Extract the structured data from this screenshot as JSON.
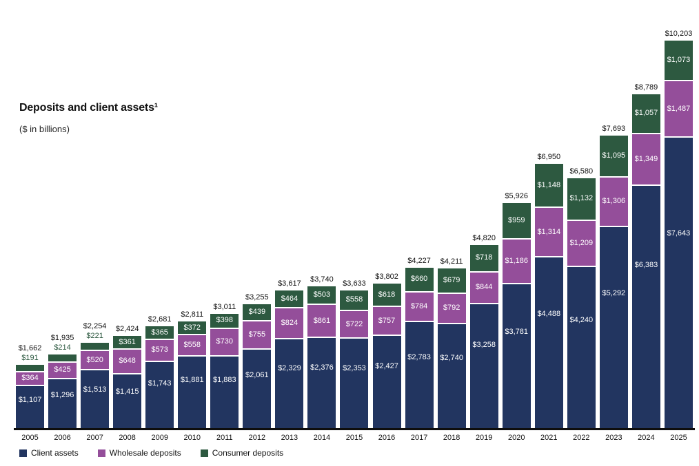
{
  "title": "Deposits and client assets¹",
  "subtitle": "($ in billions)",
  "colors": {
    "client_assets": "#223560",
    "wholesale_deposits": "#944e9a",
    "consumer_deposits": "#2d5940",
    "axis_line": "#0e0e0e",
    "total_label": "#111111",
    "background": "#ffffff"
  },
  "legend": [
    {
      "label": "Client assets",
      "color": "#223560"
    },
    {
      "label": "Wholesale deposits",
      "color": "#944e9a"
    },
    {
      "label": "Consumer deposits",
      "color": "#2d5940"
    }
  ],
  "chart_data": {
    "type": "bar",
    "stacked": true,
    "title": "Deposits and client assets¹",
    "subtitle": "($ in billions)",
    "unit": "$ in billions",
    "grid": false,
    "legend_position": "bottom",
    "ylim": [
      0,
      10203
    ],
    "categories": [
      "2005",
      "2006",
      "2007",
      "2008",
      "2009",
      "2010",
      "2011",
      "2012",
      "2013",
      "2014",
      "2015",
      "2016",
      "2017",
      "2018",
      "2019",
      "2020",
      "2021",
      "2022",
      "2023",
      "2024",
      "2025"
    ],
    "series": [
      {
        "name": "Client assets",
        "color": "#223560",
        "values": [
          1107,
          1296,
          1513,
          1415,
          1743,
          1881,
          1883,
          2061,
          2329,
          2376,
          2353,
          2427,
          2783,
          2740,
          3258,
          3781,
          4488,
          4240,
          5292,
          6383,
          7643
        ]
      },
      {
        "name": "Wholesale deposits",
        "color": "#944e9a",
        "values": [
          364,
          425,
          520,
          648,
          573,
          558,
          730,
          755,
          824,
          861,
          722,
          757,
          784,
          792,
          844,
          1186,
          1314,
          1209,
          1306,
          1349,
          1487
        ]
      },
      {
        "name": "Consumer deposits",
        "color": "#2d5940",
        "values": [
          191,
          214,
          221,
          361,
          365,
          372,
          398,
          439,
          464,
          503,
          558,
          618,
          660,
          679,
          718,
          959,
          1148,
          1132,
          1095,
          1057,
          1073
        ]
      }
    ],
    "totals": [
      1662,
      1935,
      2254,
      2424,
      2681,
      2811,
      3011,
      3255,
      3617,
      3740,
      3633,
      3802,
      4227,
      4211,
      4820,
      5926,
      6950,
      6580,
      7693,
      8789,
      10203
    ]
  }
}
